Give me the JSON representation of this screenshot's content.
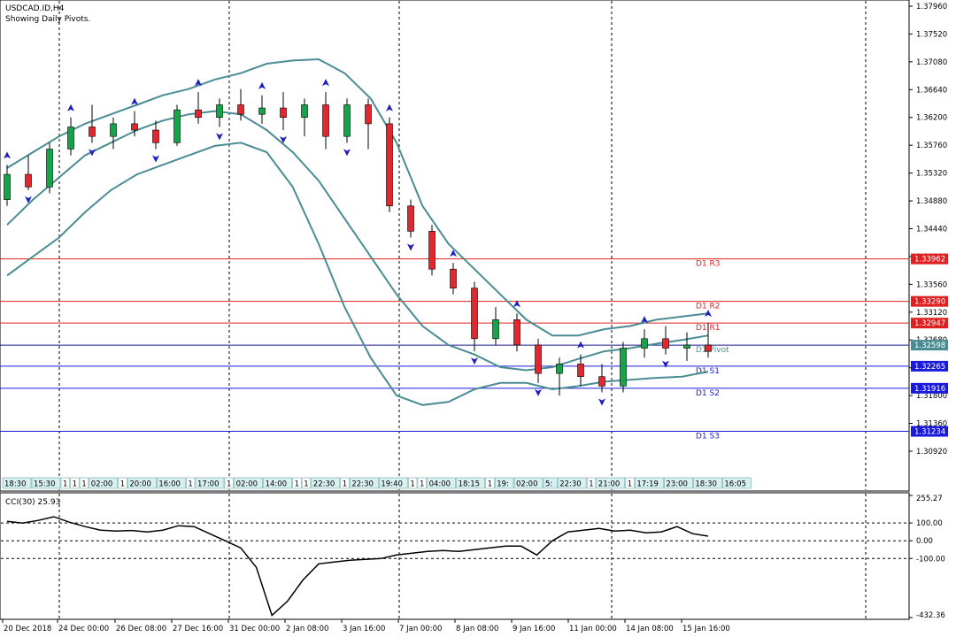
{
  "header": {
    "symbol": "USDCAD.ID,H4",
    "subtitle": "Showing Daily Pivots."
  },
  "colors": {
    "bull": "#16a34a",
    "bear": "#e0282e",
    "band": "#4a8c94",
    "resistance": "#e02020",
    "support": "#1a1adb",
    "pivot": "#1a1a8c",
    "cci": "#000000",
    "grid": "#000000",
    "arrow": "#1f1fbf",
    "session": "#00a0a0"
  },
  "chart_data": [
    {
      "type": "candlestick",
      "title": "USDCAD.ID,H4",
      "subtitle": "Showing Daily Pivots.",
      "y_ticks": [
        "1.37960",
        "1.37520",
        "1.37080",
        "1.36640",
        "1.36200",
        "1.35760",
        "1.35320",
        "1.34880",
        "1.34440",
        "1.34000",
        "1.33560",
        "1.33120",
        "1.32680",
        "1.32240",
        "1.31800",
        "1.31360",
        "1.30920"
      ],
      "ylim": [
        1.305,
        1.3803
      ],
      "x_ticks": [
        "20 Dec 2018",
        "24 Dec 00:00",
        "26 Dec 08:00",
        "27 Dec 16:00",
        "31 Dec 00:00",
        "2 Jan 08:00",
        "3 Jan 16:00",
        "7 Jan 00:00",
        "8 Jan 08:00",
        "9 Jan 16:00",
        "11 Jan 00:00",
        "14 Jan 08:00",
        "15 Jan 16:00"
      ],
      "pivot_levels": [
        {
          "label": "D1  R3",
          "value": 1.33962,
          "price_label": "1.33962",
          "kind": "resistance"
        },
        {
          "label": "D1  R2",
          "value": 1.3329,
          "price_label": "1.33290",
          "kind": "resistance"
        },
        {
          "label": "D1  R1",
          "value": 1.32947,
          "price_label": "1.32947",
          "kind": "resistance"
        },
        {
          "label": "D1  Pivot",
          "value": 1.32598,
          "price_label": "1.32598",
          "kind": "pivot"
        },
        {
          "label": "D1  S1",
          "value": 1.32265,
          "price_label": "1.32265",
          "kind": "support"
        },
        {
          "label": "D1  S2",
          "value": 1.31916,
          "price_label": "1.31916",
          "kind": "support"
        },
        {
          "label": "D1  S3",
          "value": 1.31234,
          "price_label": "1.31234",
          "kind": "support"
        }
      ],
      "bollinger": {
        "upper": [
          1.354,
          1.3565,
          1.359,
          1.361,
          1.3625,
          1.364,
          1.3655,
          1.3665,
          1.368,
          1.369,
          1.3705,
          1.371,
          1.3712,
          1.369,
          1.365,
          1.358,
          1.348,
          1.342,
          1.338,
          1.334,
          1.33,
          1.3275,
          1.3275,
          1.3285,
          1.329,
          1.33,
          1.3305,
          1.331
        ],
        "middle": [
          1.345,
          1.349,
          1.3525,
          1.356,
          1.358,
          1.36,
          1.3615,
          1.3625,
          1.363,
          1.3625,
          1.36,
          1.3565,
          1.352,
          1.346,
          1.34,
          1.334,
          1.329,
          1.326,
          1.3245,
          1.3225,
          1.322,
          1.3225,
          1.3238,
          1.325,
          1.3255,
          1.3262,
          1.3268,
          1.3275
        ],
        "lower": [
          1.337,
          1.34,
          1.343,
          1.347,
          1.3505,
          1.353,
          1.3545,
          1.356,
          1.3575,
          1.358,
          1.3565,
          1.351,
          1.342,
          1.332,
          1.324,
          1.318,
          1.3165,
          1.317,
          1.319,
          1.32,
          1.32,
          1.319,
          1.3195,
          1.3202,
          1.3205,
          1.3208,
          1.321,
          1.3218
        ]
      },
      "candles": [
        {
          "o": 1.349,
          "h": 1.3545,
          "l": 1.348,
          "c": 1.353
        },
        {
          "o": 1.353,
          "h": 1.356,
          "l": 1.3505,
          "c": 1.351
        },
        {
          "o": 1.351,
          "h": 1.358,
          "l": 1.35,
          "c": 1.357
        },
        {
          "o": 1.357,
          "h": 1.362,
          "l": 1.356,
          "c": 1.3605
        },
        {
          "o": 1.3605,
          "h": 1.364,
          "l": 1.358,
          "c": 1.359
        },
        {
          "o": 1.359,
          "h": 1.362,
          "l": 1.357,
          "c": 1.361
        },
        {
          "o": 1.361,
          "h": 1.363,
          "l": 1.359,
          "c": 1.36
        },
        {
          "o": 1.36,
          "h": 1.3615,
          "l": 1.357,
          "c": 1.358
        },
        {
          "o": 1.358,
          "h": 1.364,
          "l": 1.3575,
          "c": 1.3632
        },
        {
          "o": 1.3632,
          "h": 1.366,
          "l": 1.361,
          "c": 1.362
        },
        {
          "o": 1.362,
          "h": 1.365,
          "l": 1.3605,
          "c": 1.364
        },
        {
          "o": 1.364,
          "h": 1.3665,
          "l": 1.3615,
          "c": 1.3625
        },
        {
          "o": 1.3625,
          "h": 1.3655,
          "l": 1.361,
          "c": 1.3635
        },
        {
          "o": 1.3635,
          "h": 1.366,
          "l": 1.36,
          "c": 1.362
        },
        {
          "o": 1.362,
          "h": 1.365,
          "l": 1.359,
          "c": 1.364
        },
        {
          "o": 1.364,
          "h": 1.366,
          "l": 1.357,
          "c": 1.359
        },
        {
          "o": 1.359,
          "h": 1.365,
          "l": 1.358,
          "c": 1.364
        },
        {
          "o": 1.364,
          "h": 1.365,
          "l": 1.357,
          "c": 1.361
        },
        {
          "o": 1.361,
          "h": 1.362,
          "l": 1.347,
          "c": 1.348
        },
        {
          "o": 1.348,
          "h": 1.349,
          "l": 1.343,
          "c": 1.344
        },
        {
          "o": 1.344,
          "h": 1.345,
          "l": 1.337,
          "c": 1.338
        },
        {
          "o": 1.338,
          "h": 1.339,
          "l": 1.334,
          "c": 1.335
        },
        {
          "o": 1.335,
          "h": 1.336,
          "l": 1.325,
          "c": 1.327
        },
        {
          "o": 1.327,
          "h": 1.332,
          "l": 1.326,
          "c": 1.33
        },
        {
          "o": 1.33,
          "h": 1.331,
          "l": 1.325,
          "c": 1.326
        },
        {
          "o": 1.326,
          "h": 1.327,
          "l": 1.32,
          "c": 1.3215
        },
        {
          "o": 1.3215,
          "h": 1.324,
          "l": 1.318,
          "c": 1.323
        },
        {
          "o": 1.323,
          "h": 1.3245,
          "l": 1.3195,
          "c": 1.321
        },
        {
          "o": 1.321,
          "h": 1.323,
          "l": 1.3185,
          "c": 1.3195
        },
        {
          "o": 1.3195,
          "h": 1.3265,
          "l": 1.3185,
          "c": 1.3255
        },
        {
          "o": 1.3255,
          "h": 1.3285,
          "l": 1.324,
          "c": 1.327
        },
        {
          "o": 1.327,
          "h": 1.329,
          "l": 1.3245,
          "c": 1.3255
        },
        {
          "o": 1.3255,
          "h": 1.328,
          "l": 1.3235,
          "c": 1.326
        },
        {
          "o": 1.326,
          "h": 1.3295,
          "l": 1.324,
          "c": 1.325
        }
      ]
    },
    {
      "type": "line",
      "title": "CCI(30) 25.93",
      "y_ticks": [
        "255.27",
        "100.00",
        "0.00",
        "-100.00",
        "-432.36"
      ],
      "ylim": [
        -432.36,
        255.27
      ],
      "levels": [
        100,
        0,
        -100
      ],
      "values": [
        110,
        100,
        115,
        135,
        105,
        80,
        60,
        55,
        58,
        50,
        60,
        85,
        80,
        40,
        0,
        -40,
        -150,
        -420,
        -340,
        -220,
        -130,
        -120,
        -110,
        -105,
        -100,
        -80,
        -70,
        -60,
        -55,
        -60,
        -50,
        -40,
        -30,
        -30,
        -80,
        0,
        50,
        60,
        70,
        55,
        60,
        45,
        50,
        80,
        40,
        26
      ]
    }
  ],
  "session_labels": [
    "18:30",
    "15:30",
    "1",
    "1",
    "1",
    "02:00",
    "1",
    "20:00",
    "16:00",
    "1",
    "17:00",
    "1",
    "02:00",
    "14:00",
    "1",
    "1",
    "22:30",
    "1",
    "22:30",
    "19:40",
    "1",
    "1",
    "04:00",
    "18:15",
    "1",
    "19:",
    "02:00",
    "5:",
    "22:30",
    "1",
    "21:00",
    "1",
    "17:19",
    "23:00",
    "18:30",
    "16:05"
  ]
}
